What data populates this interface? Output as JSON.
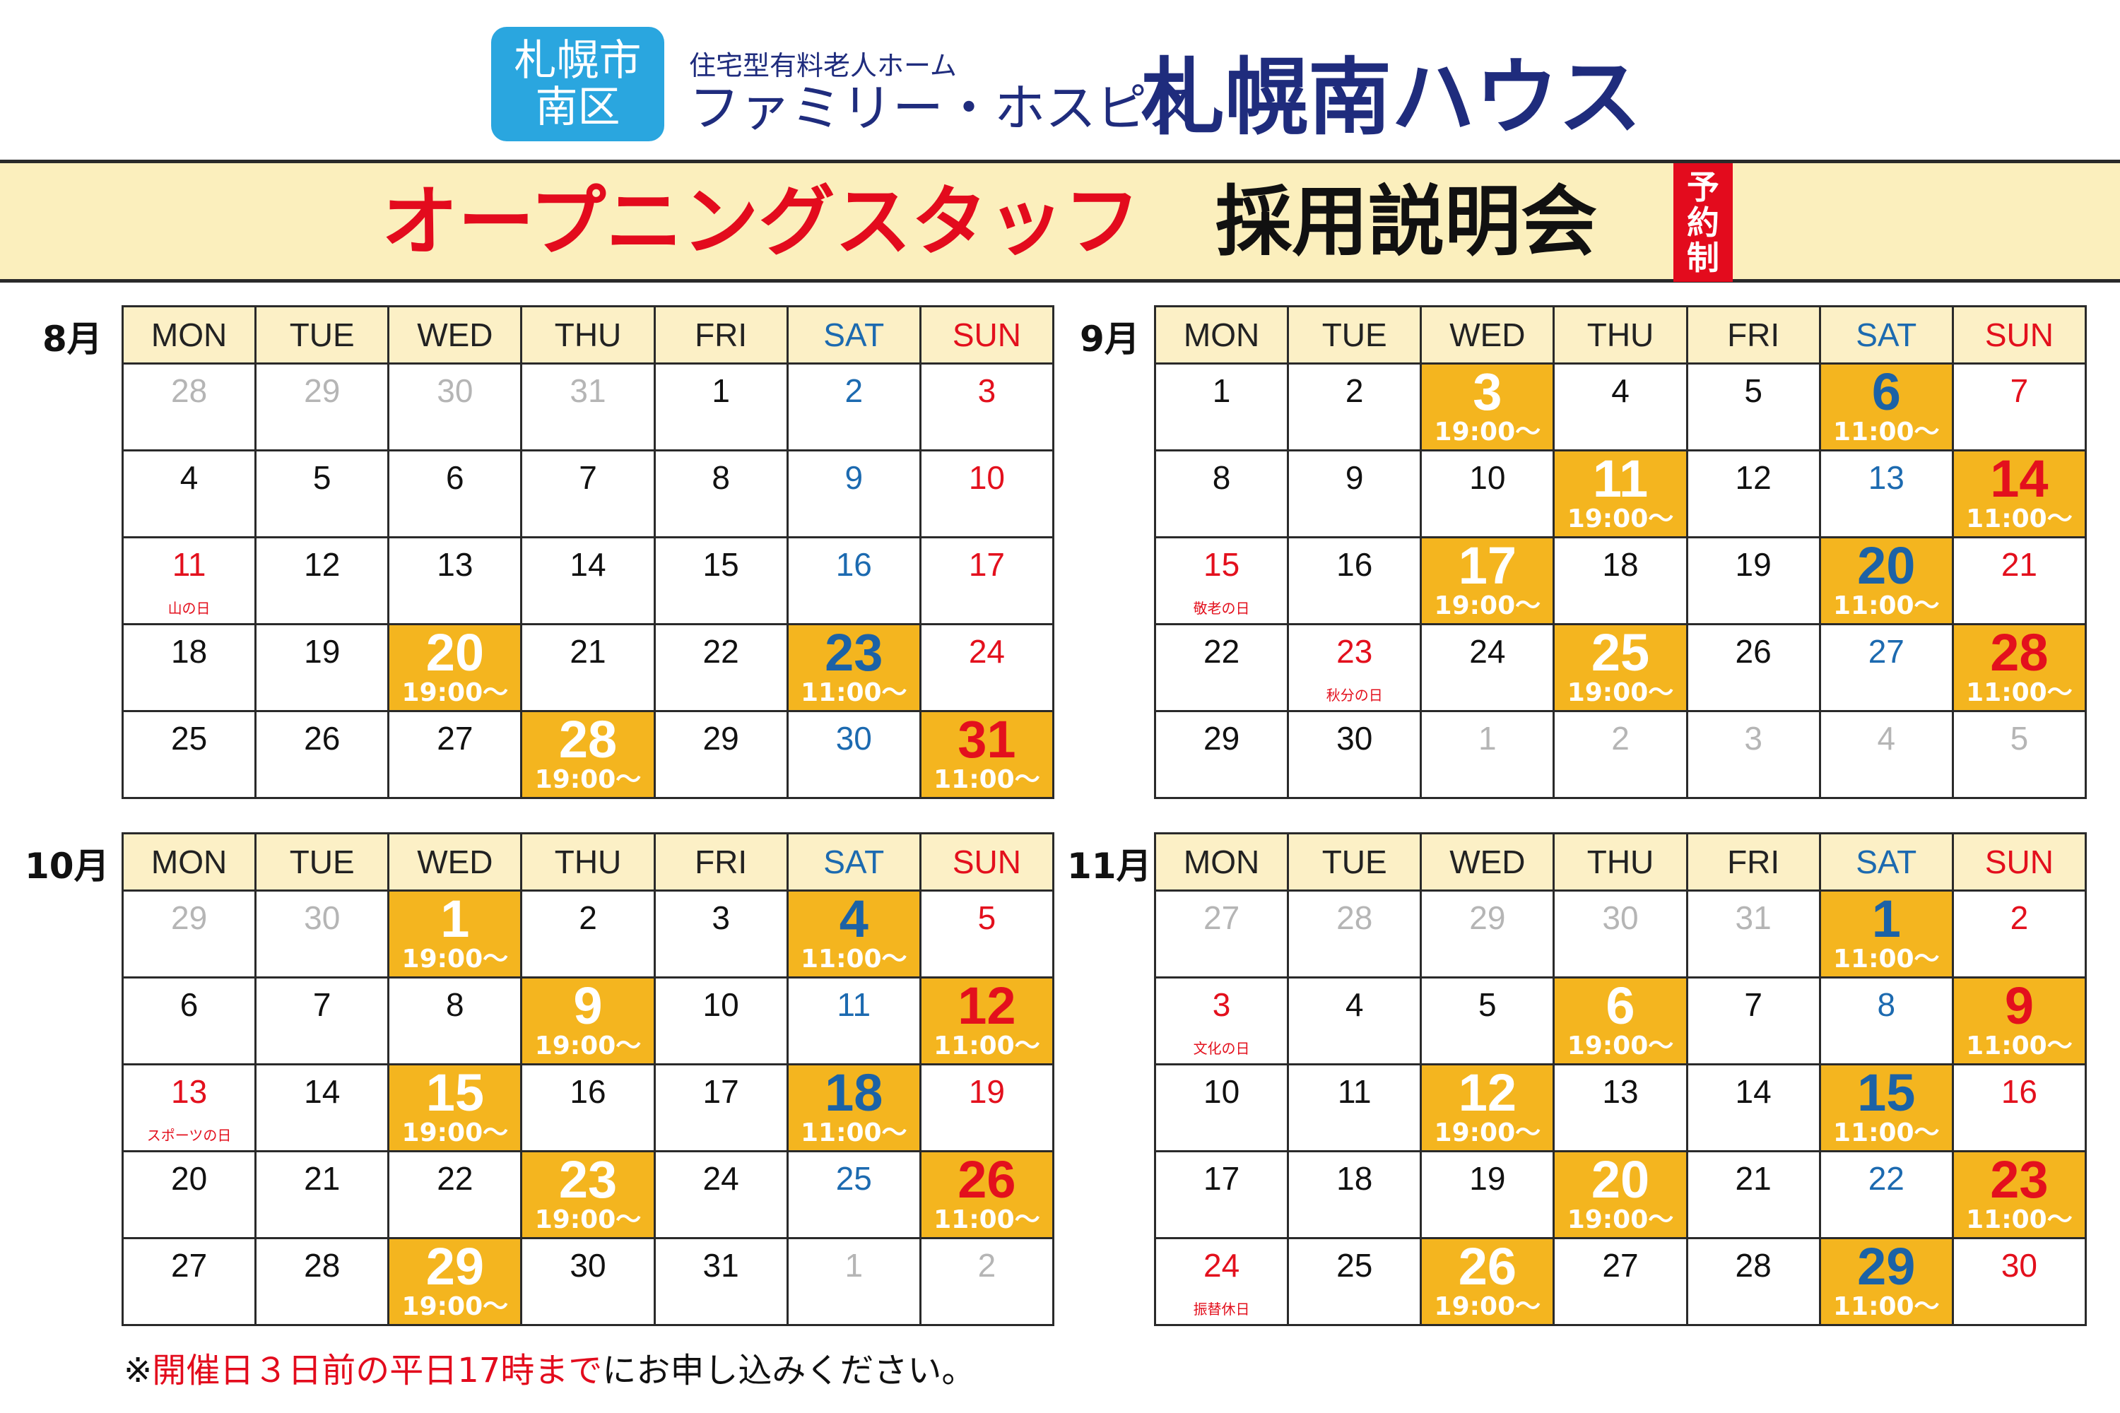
{
  "header": {
    "badge_line1": "札幌市",
    "badge_line2": "南区",
    "subtitle": "住宅型有料老人ホーム",
    "facility_prefix": "ファミリー・ホスピス",
    "facility_name": "札幌南ハウス"
  },
  "banner": {
    "red_text": "オープニングスタッフ",
    "black_text": "採用説明会",
    "reserve_chars": [
      "予",
      "約",
      "制"
    ]
  },
  "weekdays": [
    "MON",
    "TUE",
    "WED",
    "THU",
    "FRI",
    "SAT",
    "SUN"
  ],
  "colors": {
    "event": "#f4b51f",
    "saturday": "#1c6ab0",
    "sunday": "#e3101d",
    "header_bg": "#fcf0c6",
    "badge": "#2aa6df"
  },
  "months": [
    {
      "label": "8月",
      "weeks": [
        [
          {
            "d": "28",
            "other": true
          },
          {
            "d": "29",
            "other": true
          },
          {
            "d": "30",
            "other": true
          },
          {
            "d": "31",
            "other": true
          },
          {
            "d": "1"
          },
          {
            "d": "2"
          },
          {
            "d": "3"
          }
        ],
        [
          {
            "d": "4"
          },
          {
            "d": "5"
          },
          {
            "d": "6"
          },
          {
            "d": "7"
          },
          {
            "d": "8"
          },
          {
            "d": "9"
          },
          {
            "d": "10"
          }
        ],
        [
          {
            "d": "11",
            "hol": "山の日"
          },
          {
            "d": "12"
          },
          {
            "d": "13"
          },
          {
            "d": "14"
          },
          {
            "d": "15"
          },
          {
            "d": "16"
          },
          {
            "d": "17"
          }
        ],
        [
          {
            "d": "18"
          },
          {
            "d": "19"
          },
          {
            "d": "20",
            "time": "19:00～"
          },
          {
            "d": "21"
          },
          {
            "d": "22"
          },
          {
            "d": "23",
            "time": "11:00～"
          },
          {
            "d": "24"
          }
        ],
        [
          {
            "d": "25"
          },
          {
            "d": "26"
          },
          {
            "d": "27"
          },
          {
            "d": "28",
            "time": "19:00～"
          },
          {
            "d": "29"
          },
          {
            "d": "30"
          },
          {
            "d": "31",
            "time": "11:00～"
          }
        ]
      ]
    },
    {
      "label": "9月",
      "weeks": [
        [
          {
            "d": "1"
          },
          {
            "d": "2"
          },
          {
            "d": "3",
            "time": "19:00～"
          },
          {
            "d": "4"
          },
          {
            "d": "5"
          },
          {
            "d": "6",
            "time": "11:00～"
          },
          {
            "d": "7"
          }
        ],
        [
          {
            "d": "8"
          },
          {
            "d": "9"
          },
          {
            "d": "10"
          },
          {
            "d": "11",
            "time": "19:00～"
          },
          {
            "d": "12"
          },
          {
            "d": "13"
          },
          {
            "d": "14",
            "time": "11:00～"
          }
        ],
        [
          {
            "d": "15",
            "hol": "敬老の日"
          },
          {
            "d": "16"
          },
          {
            "d": "17",
            "time": "19:00～"
          },
          {
            "d": "18"
          },
          {
            "d": "19"
          },
          {
            "d": "20",
            "time": "11:00～"
          },
          {
            "d": "21"
          }
        ],
        [
          {
            "d": "22"
          },
          {
            "d": "23",
            "hol": "秋分の日"
          },
          {
            "d": "24"
          },
          {
            "d": "25",
            "time": "19:00～"
          },
          {
            "d": "26"
          },
          {
            "d": "27"
          },
          {
            "d": "28",
            "time": "11:00～"
          }
        ],
        [
          {
            "d": "29"
          },
          {
            "d": "30"
          },
          {
            "d": "1",
            "other": true
          },
          {
            "d": "2",
            "other": true
          },
          {
            "d": "3",
            "other": true
          },
          {
            "d": "4",
            "other": true
          },
          {
            "d": "5",
            "other": true
          }
        ]
      ]
    },
    {
      "label": "10月",
      "weeks": [
        [
          {
            "d": "29",
            "other": true
          },
          {
            "d": "30",
            "other": true
          },
          {
            "d": "1",
            "time": "19:00～"
          },
          {
            "d": "2"
          },
          {
            "d": "3"
          },
          {
            "d": "4",
            "time": "11:00～"
          },
          {
            "d": "5"
          }
        ],
        [
          {
            "d": "6"
          },
          {
            "d": "7"
          },
          {
            "d": "8"
          },
          {
            "d": "9",
            "time": "19:00～"
          },
          {
            "d": "10"
          },
          {
            "d": "11"
          },
          {
            "d": "12",
            "time": "11:00～"
          }
        ],
        [
          {
            "d": "13",
            "hol": "スポーツの日"
          },
          {
            "d": "14"
          },
          {
            "d": "15",
            "time": "19:00～"
          },
          {
            "d": "16"
          },
          {
            "d": "17"
          },
          {
            "d": "18",
            "time": "11:00～"
          },
          {
            "d": "19"
          }
        ],
        [
          {
            "d": "20"
          },
          {
            "d": "21"
          },
          {
            "d": "22"
          },
          {
            "d": "23",
            "time": "19:00～"
          },
          {
            "d": "24"
          },
          {
            "d": "25"
          },
          {
            "d": "26",
            "time": "11:00～"
          }
        ],
        [
          {
            "d": "27"
          },
          {
            "d": "28"
          },
          {
            "d": "29",
            "time": "19:00～"
          },
          {
            "d": "30"
          },
          {
            "d": "31"
          },
          {
            "d": "1",
            "other": true
          },
          {
            "d": "2",
            "other": true
          }
        ]
      ]
    },
    {
      "label": "11月",
      "weeks": [
        [
          {
            "d": "27",
            "other": true
          },
          {
            "d": "28",
            "other": true
          },
          {
            "d": "29",
            "other": true
          },
          {
            "d": "30",
            "other": true
          },
          {
            "d": "31",
            "other": true
          },
          {
            "d": "1",
            "time": "11:00～"
          },
          {
            "d": "2"
          }
        ],
        [
          {
            "d": "3",
            "hol": "文化の日"
          },
          {
            "d": "4"
          },
          {
            "d": "5"
          },
          {
            "d": "6",
            "time": "19:00～"
          },
          {
            "d": "7"
          },
          {
            "d": "8"
          },
          {
            "d": "9",
            "time": "11:00～"
          }
        ],
        [
          {
            "d": "10"
          },
          {
            "d": "11"
          },
          {
            "d": "12",
            "time": "19:00～"
          },
          {
            "d": "13"
          },
          {
            "d": "14"
          },
          {
            "d": "15",
            "time": "11:00～"
          },
          {
            "d": "16"
          }
        ],
        [
          {
            "d": "17"
          },
          {
            "d": "18"
          },
          {
            "d": "19"
          },
          {
            "d": "20",
            "time": "19:00～"
          },
          {
            "d": "21"
          },
          {
            "d": "22"
          },
          {
            "d": "23",
            "time": "11:00～"
          }
        ],
        [
          {
            "d": "24",
            "hol": "振替休日"
          },
          {
            "d": "25"
          },
          {
            "d": "26",
            "time": "19:00～"
          },
          {
            "d": "27"
          },
          {
            "d": "28"
          },
          {
            "d": "29",
            "time": "11:00～"
          },
          {
            "d": "30"
          }
        ]
      ]
    }
  ],
  "note": {
    "prefix": "※",
    "red": "開催日３日前の平日17時まで",
    "suffix": "にお申し込みください。"
  }
}
